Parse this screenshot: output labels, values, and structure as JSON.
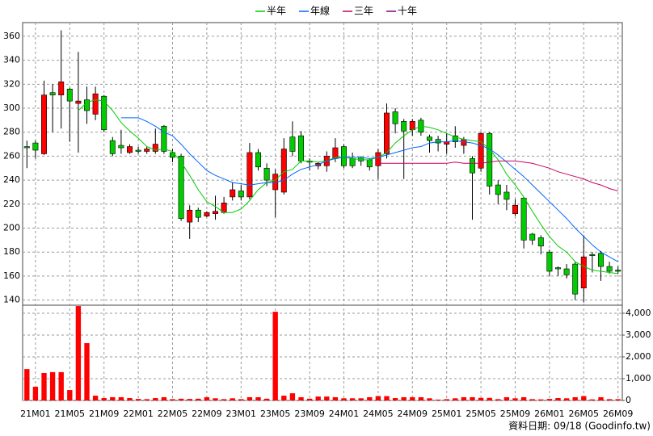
{
  "chart_data": {
    "type": "candlestick",
    "categories": [
      null,
      "21M01",
      null,
      null,
      null,
      "21M05",
      null,
      null,
      null,
      "21M09",
      null,
      null,
      null,
      "22M01",
      null,
      null,
      null,
      "22M05",
      null,
      null,
      null,
      "22M09",
      null,
      null,
      null,
      "23M01",
      null,
      null,
      null,
      "23M05",
      null,
      null,
      null,
      "23M09",
      null,
      null,
      null,
      "24M01",
      null,
      null,
      null,
      "24M05",
      null,
      null,
      null,
      "24M09",
      null,
      null,
      null,
      "25M01",
      null,
      null,
      null,
      "25M05",
      null,
      null,
      null,
      "25M09",
      null,
      null,
      null,
      "26M01",
      null,
      null,
      null,
      "26M05",
      null,
      null,
      null,
      "26M09"
    ],
    "open": [
      268,
      271,
      262,
      313,
      311,
      316,
      304,
      307,
      295,
      310,
      273,
      269,
      263,
      265,
      264,
      264,
      285,
      263,
      260,
      205,
      215,
      210,
      212,
      213,
      226,
      231,
      226,
      263,
      250,
      232,
      230,
      276,
      277,
      256,
      252,
      252,
      258,
      268,
      258,
      259,
      257,
      252,
      262,
      297,
      289,
      282,
      290,
      276,
      274,
      270,
      277,
      269,
      258,
      250,
      279,
      236,
      230,
      212,
      225,
      195,
      192,
      180,
      167,
      166,
      170,
      150,
      178,
      179,
      168,
      165
    ],
    "high": [
      273,
      273,
      323,
      320,
      365,
      317,
      347,
      318,
      318,
      311,
      276,
      282,
      270,
      268,
      268,
      283,
      286,
      266,
      262,
      219,
      217,
      214,
      227,
      226,
      238,
      236,
      271,
      266,
      254,
      249,
      275,
      289,
      281,
      258,
      255,
      264,
      275,
      270,
      263,
      260,
      258,
      266,
      304,
      300,
      291,
      291,
      292,
      278,
      277,
      279,
      285,
      276,
      260,
      280,
      280,
      240,
      236,
      224,
      226,
      196,
      194,
      182,
      168,
      170,
      172,
      194,
      180,
      181,
      172,
      168
    ],
    "low": [
      250,
      258,
      261,
      280,
      283,
      272,
      263,
      287,
      290,
      280,
      260,
      262,
      262,
      262,
      262,
      262,
      262,
      255,
      206,
      191,
      205,
      209,
      207,
      212,
      223,
      223,
      224,
      248,
      235,
      209,
      228,
      260,
      254,
      248,
      249,
      247,
      255,
      250,
      250,
      252,
      248,
      241,
      258,
      279,
      241,
      277,
      277,
      263,
      264,
      262,
      267,
      262,
      207,
      247,
      228,
      220,
      215,
      210,
      183,
      186,
      178,
      160,
      160,
      158,
      140,
      138,
      163,
      156,
      162,
      162
    ],
    "close": [
      267,
      265,
      311,
      311,
      322,
      306,
      306,
      298,
      312,
      282,
      262,
      267,
      268,
      264,
      266,
      270,
      264,
      259,
      208,
      215,
      209,
      213,
      214,
      221,
      232,
      226,
      263,
      251,
      240,
      245,
      266,
      264,
      256,
      255,
      254,
      260,
      267,
      252,
      252,
      256,
      251,
      263,
      296,
      287,
      281,
      289,
      280,
      273,
      271,
      272,
      272,
      274,
      246,
      279,
      235,
      228,
      224,
      219,
      190,
      190,
      185,
      164,
      166,
      161,
      145,
      176,
      177,
      168,
      164,
      164
    ],
    "up_color": "#ff0000",
    "down_color": "#00cc00",
    "series": [
      {
        "name": "半年",
        "color": "#00cc00",
        "values": [
          null,
          null,
          null,
          null,
          null,
          null,
          298,
          305,
          307,
          306,
          298,
          288,
          281,
          275,
          268,
          265,
          266,
          264,
          255,
          244,
          232,
          222,
          218,
          213,
          213,
          216,
          223,
          232,
          238,
          240,
          247,
          249,
          256,
          256,
          255,
          256,
          259,
          259,
          258,
          257,
          257,
          259,
          263,
          271,
          277,
          282,
          285,
          284,
          282,
          279,
          276,
          274,
          273,
          272,
          266,
          257,
          245,
          236,
          226,
          214,
          203,
          193,
          185,
          180,
          172,
          168,
          165,
          164,
          163,
          162
        ]
      },
      {
        "name": "年線",
        "color": "#0066ff",
        "values": [
          null,
          null,
          null,
          null,
          null,
          null,
          null,
          null,
          null,
          null,
          null,
          292,
          292,
          292,
          289,
          285,
          280,
          277,
          270,
          262,
          255,
          248,
          244,
          241,
          238,
          237,
          236,
          237,
          238,
          238,
          240,
          245,
          249,
          251,
          253,
          256,
          258,
          259,
          259,
          259,
          258,
          259,
          261,
          263,
          265,
          267,
          268,
          271,
          272,
          272,
          273,
          272,
          271,
          269,
          266,
          261,
          255,
          249,
          243,
          236,
          229,
          222,
          215,
          208,
          200,
          193,
          186,
          180,
          176,
          172
        ]
      },
      {
        "name": "三年",
        "color": "#cc0066",
        "values": [
          null,
          null,
          null,
          null,
          null,
          null,
          null,
          null,
          null,
          null,
          null,
          null,
          null,
          null,
          null,
          null,
          null,
          null,
          null,
          null,
          null,
          null,
          null,
          null,
          null,
          null,
          null,
          null,
          null,
          null,
          null,
          null,
          null,
          null,
          null,
          null,
          null,
          null,
          null,
          null,
          null,
          254,
          254,
          254,
          254,
          254,
          254,
          254,
          254,
          254,
          255,
          254,
          254,
          254,
          255,
          256,
          256,
          256,
          255,
          254,
          252,
          250,
          247,
          245,
          243,
          241,
          238,
          236,
          233,
          231
        ]
      },
      {
        "name": "十年",
        "color": "#800080",
        "values": [
          null,
          null,
          null,
          null,
          null,
          null,
          null,
          null,
          null,
          null,
          null,
          null,
          null,
          null,
          null,
          null,
          null,
          null,
          null,
          null,
          null,
          null,
          null,
          null,
          null,
          null,
          null,
          null,
          null,
          null,
          null,
          null,
          null,
          null,
          null,
          null,
          null,
          null,
          null,
          null,
          null,
          null,
          null,
          null,
          null,
          null,
          null,
          null,
          null,
          null,
          null,
          null,
          null,
          null,
          null,
          null,
          null,
          null,
          null,
          null,
          null,
          null,
          null,
          null,
          null,
          null,
          null,
          null,
          null,
          null
        ]
      }
    ],
    "volume": {
      "color": "#ff0000",
      "axis": "y2",
      "values": [
        1440,
        630,
        1260,
        1300,
        1300,
        480,
        4330,
        2630,
        220,
        110,
        150,
        150,
        110,
        70,
        60,
        110,
        150,
        60,
        80,
        70,
        80,
        150,
        100,
        60,
        100,
        60,
        150,
        150,
        80,
        4070,
        220,
        330,
        150,
        80,
        180,
        180,
        150,
        100,
        100,
        100,
        150,
        200,
        200,
        110,
        150,
        150,
        150,
        100,
        40,
        60,
        100,
        150,
        150,
        120,
        120,
        60,
        150,
        100,
        150,
        60,
        50,
        70,
        110,
        100,
        150,
        200,
        50,
        150,
        60,
        60
      ]
    },
    "ylim": [
      135.7,
      371.4
    ],
    "yticks": [
      140,
      160,
      180,
      200,
      220,
      240,
      260,
      280,
      300,
      320,
      340,
      360
    ],
    "y2lim": [
      0,
      4370
    ],
    "y2ticks": [
      0,
      {
        "value": 1000,
        "label": "1,000"
      },
      {
        "value": 2000,
        "label": "2,000"
      },
      {
        "value": 3000,
        "label": "3,000"
      },
      {
        "value": 4000,
        "label": "4,000"
      }
    ],
    "grid": true,
    "legend": "top",
    "source": "資料日期: 09/18  (Goodinfo.tw)"
  }
}
